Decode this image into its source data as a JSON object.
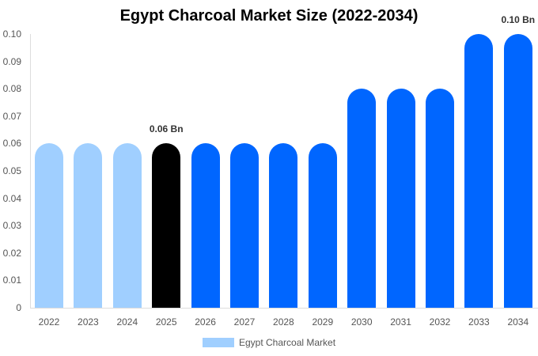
{
  "chart_data": {
    "type": "bar",
    "title": "Egypt Charcoal Market Size (2022-2034)",
    "xlabel": "",
    "ylabel": "",
    "ylim": [
      0,
      0.1
    ],
    "yticks": [
      "0",
      "0.01",
      "0.02",
      "0.03",
      "0.04",
      "0.05",
      "0.06",
      "0.07",
      "0.08",
      "0.09",
      "0.10"
    ],
    "categories": [
      "2022",
      "2023",
      "2024",
      "2025",
      "2026",
      "2027",
      "2028",
      "2029",
      "2030",
      "2031",
      "2032",
      "2033",
      "2034"
    ],
    "series": [
      {
        "name": "Egypt Charcoal Market",
        "values": [
          0.06,
          0.06,
          0.06,
          0.06,
          0.06,
          0.06,
          0.06,
          0.06,
          0.08,
          0.08,
          0.08,
          0.1,
          0.1
        ]
      }
    ],
    "bar_colors": [
      "#a0cfff",
      "#a0cfff",
      "#a0cfff",
      "#000000",
      "#0066ff",
      "#0066ff",
      "#0066ff",
      "#0066ff",
      "#0066ff",
      "#0066ff",
      "#0066ff",
      "#0066ff",
      "#0066ff"
    ],
    "annotations": [
      {
        "category": "2025",
        "text": "0.06 Bn"
      },
      {
        "category": "2034",
        "text": "0.10 Bn"
      }
    ],
    "legend": {
      "position": "bottom",
      "entries": [
        "Egypt Charcoal Market"
      ]
    },
    "grid": false
  }
}
